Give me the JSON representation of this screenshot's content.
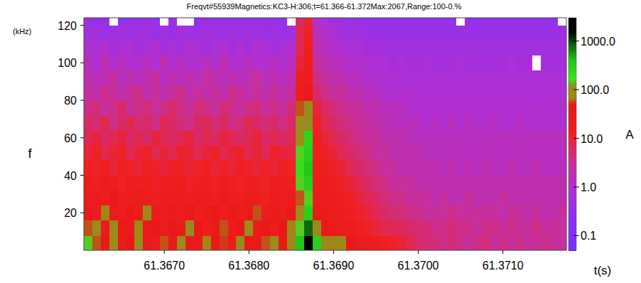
{
  "chart_data": {
    "type": "heatmap",
    "title": "Freqvt#55939Magnetics:KC3-H:306;t=61.366-61.372Max:2067,Range:100-0.%",
    "x_label": "t(s)",
    "y_label": "f",
    "y_unit": "(kHz)",
    "xlim": [
      61.36605,
      61.37175
    ],
    "ylim": [
      0,
      124
    ],
    "xticks": [
      {
        "value": 61.367,
        "label": "61.3670"
      },
      {
        "value": 61.368,
        "label": "61.3680"
      },
      {
        "value": 61.369,
        "label": "61.3690"
      },
      {
        "value": 61.37,
        "label": "61.3700"
      },
      {
        "value": 61.371,
        "label": "61.3710"
      }
    ],
    "yticks": [
      20,
      40,
      60,
      80,
      100,
      120
    ],
    "x_bins": [
      61.36605,
      61.36615,
      61.36625,
      61.36635,
      61.36645,
      61.36655,
      61.36665,
      61.36675,
      61.36685,
      61.36695,
      61.36705,
      61.36715,
      61.36725,
      61.36735,
      61.36745,
      61.36755,
      61.36765,
      61.36775,
      61.36785,
      61.36795,
      61.36805,
      61.36815,
      61.36825,
      61.36835,
      61.36845,
      61.36855,
      61.36865,
      61.36875,
      61.36885,
      61.36895,
      61.36905,
      61.36915,
      61.36925,
      61.36935,
      61.36945,
      61.36955,
      61.36965,
      61.36975,
      61.36985,
      61.36995,
      61.37005,
      61.37015,
      61.37025,
      61.37035,
      61.37045,
      61.37055,
      61.37065,
      61.37075,
      61.37085,
      61.37095,
      61.37105,
      61.37115,
      61.37125,
      61.37135,
      61.37145,
      61.37155,
      61.37165,
      61.37175
    ],
    "y_bins": [
      0,
      8,
      16,
      24,
      32,
      40,
      48,
      56,
      64,
      72,
      80,
      88,
      96,
      104,
      112,
      120,
      128
    ],
    "cells": [
      [
        150,
        60,
        40,
        80,
        30,
        50,
        90,
        40,
        25,
        60,
        35,
        80,
        45,
        30,
        70,
        40,
        55,
        30,
        90,
        45,
        35,
        60,
        80,
        40,
        90,
        400,
        2000,
        300,
        90,
        70,
        80,
        40,
        30,
        25,
        20,
        15,
        12,
        10,
        8,
        6,
        5,
        5,
        4,
        5,
        4,
        3,
        4,
        5,
        3,
        4,
        3,
        4,
        3,
        3,
        4,
        3,
        3
      ],
      [
        60,
        80,
        25,
        90,
        40,
        30,
        70,
        35,
        45,
        25,
        50,
        30,
        90,
        40,
        20,
        35,
        60,
        25,
        40,
        80,
        30,
        45,
        25,
        50,
        70,
        150,
        800,
        90,
        40,
        30,
        25,
        20,
        15,
        12,
        10,
        8,
        8,
        7,
        6,
        5,
        5,
        4,
        4,
        5,
        4,
        4,
        3,
        4,
        4,
        3,
        4,
        3,
        3,
        4,
        3,
        3,
        3
      ],
      [
        40,
        25,
        70,
        30,
        20,
        45,
        25,
        80,
        30,
        20,
        35,
        25,
        40,
        20,
        30,
        45,
        20,
        35,
        25,
        30,
        60,
        25,
        35,
        20,
        40,
        80,
        300,
        40,
        30,
        25,
        20,
        15,
        12,
        10,
        8,
        6,
        5,
        5,
        4,
        4,
        3,
        3,
        3,
        4,
        3,
        3,
        3,
        3,
        3,
        2,
        3,
        3,
        2,
        3,
        2,
        2,
        3
      ],
      [
        25,
        30,
        20,
        40,
        18,
        25,
        30,
        20,
        15,
        25,
        20,
        30,
        18,
        25,
        20,
        15,
        30,
        20,
        18,
        25,
        20,
        15,
        25,
        18,
        30,
        60,
        150,
        30,
        25,
        20,
        15,
        12,
        10,
        8,
        6,
        5,
        4,
        4,
        3,
        3,
        3,
        2,
        3,
        2,
        2,
        3,
        2,
        2,
        2,
        3,
        2,
        2,
        2,
        2,
        2,
        2,
        2
      ],
      [
        20,
        15,
        25,
        18,
        12,
        20,
        15,
        22,
        12,
        18,
        15,
        20,
        12,
        15,
        18,
        12,
        20,
        15,
        12,
        18,
        15,
        12,
        20,
        15,
        18,
        150,
        300,
        25,
        20,
        15,
        12,
        10,
        8,
        6,
        5,
        4,
        3,
        3,
        3,
        2,
        2,
        2,
        2,
        2,
        2,
        2,
        2,
        2,
        2,
        2,
        2,
        2,
        2,
        2,
        2,
        2,
        2
      ],
      [
        15,
        12,
        18,
        10,
        15,
        12,
        10,
        15,
        12,
        10,
        15,
        12,
        10,
        12,
        15,
        10,
        12,
        10,
        15,
        12,
        10,
        12,
        10,
        15,
        12,
        200,
        400,
        20,
        15,
        12,
        10,
        8,
        6,
        5,
        4,
        3,
        3,
        2,
        2,
        2,
        2,
        2,
        1.5,
        2,
        1.5,
        2,
        1.5,
        2,
        1.5,
        1.5,
        2,
        1.5,
        1.5,
        2,
        1.5,
        1.5,
        1.5
      ],
      [
        10,
        12,
        8,
        10,
        12,
        8,
        10,
        12,
        8,
        10,
        8,
        12,
        10,
        8,
        10,
        12,
        8,
        10,
        12,
        8,
        10,
        8,
        12,
        10,
        10,
        150,
        300,
        18,
        12,
        10,
        8,
        6,
        5,
        4,
        3,
        3,
        2,
        2,
        2,
        2,
        1.5,
        1.5,
        1.5,
        1.5,
        1.5,
        1.5,
        1.5,
        1.5,
        1.5,
        1.5,
        1.5,
        1.5,
        1.5,
        1.5,
        1.5,
        1.5,
        1.5
      ],
      [
        8,
        10,
        6,
        8,
        10,
        6,
        8,
        6,
        10,
        8,
        6,
        8,
        10,
        6,
        8,
        6,
        10,
        8,
        6,
        8,
        10,
        6,
        8,
        6,
        8,
        80,
        250,
        15,
        10,
        8,
        6,
        5,
        4,
        3,
        3,
        2,
        2,
        2,
        1.5,
        1.5,
        1.5,
        1.5,
        1.5,
        1.5,
        1.5,
        1.5,
        1.5,
        1.5,
        1.5,
        1.5,
        1.5,
        1.5,
        1.5,
        1.5,
        1.5,
        1.5,
        1.5
      ],
      [
        6,
        5,
        8,
        4,
        6,
        8,
        5,
        6,
        4,
        8,
        6,
        5,
        4,
        6,
        8,
        5,
        6,
        4,
        5,
        8,
        6,
        5,
        6,
        4,
        6,
        80,
        120,
        12,
        8,
        6,
        5,
        4,
        3,
        3,
        2,
        2,
        1.5,
        1.5,
        1.5,
        1.5,
        1,
        1.5,
        1,
        1.5,
        1,
        1.5,
        1,
        1,
        1.5,
        1,
        1,
        1.5,
        1,
        1,
        1,
        1,
        1
      ],
      [
        4,
        5,
        3,
        4,
        6,
        3,
        4,
        5,
        3,
        4,
        6,
        4,
        3,
        5,
        4,
        3,
        5,
        4,
        3,
        4,
        5,
        3,
        4,
        3,
        5,
        60,
        90,
        10,
        6,
        5,
        4,
        3,
        3,
        2,
        2,
        1.5,
        1.5,
        1.5,
        1,
        1,
        1,
        1,
        1,
        1,
        1,
        1,
        1,
        1,
        1,
        1,
        1,
        1,
        1,
        1,
        1,
        1,
        1
      ],
      [
        3,
        2,
        4,
        3,
        2,
        3,
        4,
        2,
        3,
        2,
        3,
        4,
        2,
        3,
        2,
        3,
        2,
        4,
        3,
        2,
        3,
        2,
        3,
        2,
        3,
        20,
        40,
        6,
        4,
        3,
        3,
        2,
        2,
        1.5,
        1.5,
        1,
        1,
        1,
        1,
        1,
        0.8,
        1,
        0.8,
        1,
        0.8,
        1,
        0.8,
        1,
        0.8,
        0.8,
        1,
        0.8,
        0.8,
        0.8,
        1,
        0.8,
        0.8
      ],
      [
        2,
        1.5,
        2,
        3,
        1.5,
        2,
        1.5,
        2,
        3,
        1.5,
        2,
        1.5,
        2,
        1.5,
        3,
        2,
        1.5,
        2,
        1.5,
        2,
        3,
        1.5,
        2,
        1.5,
        2,
        15,
        25,
        4,
        3,
        2,
        2,
        1.5,
        1.5,
        1,
        1,
        1,
        0.8,
        0.8,
        0.8,
        0.8,
        0.8,
        0.8,
        0.8,
        0.8,
        0.8,
        0.8,
        0.8,
        0.8,
        0.8,
        0.8,
        0.8,
        0.8,
        0.8,
        0.8,
        0.8,
        0.8,
        0.8
      ],
      [
        1.5,
        1,
        2,
        1,
        1.5,
        1,
        1,
        1.5,
        1,
        2,
        1,
        1.5,
        1,
        1,
        1.5,
        1,
        2,
        1,
        1,
        1.5,
        1,
        1,
        1.5,
        1,
        1.5,
        10,
        20,
        3,
        2,
        1.5,
        1.5,
        1,
        1,
        1,
        0.8,
        0.8,
        0.6,
        0.8,
        0.6,
        0.6,
        0.8,
        0.6,
        0.6,
        0.6,
        0.8,
        0.6,
        0.6,
        0.6,
        0.6,
        0.6,
        0.8,
        0.6,
        0.6,
        0.04,
        0.6,
        0.6,
        0.6
      ],
      [
        1,
        0.8,
        1,
        0.6,
        0.8,
        1,
        0.6,
        0.8,
        1,
        0.6,
        0.8,
        0.6,
        1,
        0.8,
        0.6,
        0.8,
        1,
        0.6,
        0.8,
        0.6,
        1,
        0.8,
        0.6,
        0.8,
        1,
        8,
        15,
        2,
        1.5,
        1,
        1,
        0.8,
        0.8,
        0.6,
        0.6,
        0.6,
        0.5,
        0.5,
        0.5,
        0.5,
        0.5,
        0.5,
        0.5,
        0.5,
        0.5,
        0.5,
        0.5,
        0.5,
        0.5,
        0.5,
        0.5,
        0.5,
        0.5,
        0.5,
        0.5,
        0.5,
        0.5
      ],
      [
        0.5,
        0.6,
        0.4,
        0.5,
        0.6,
        0.4,
        0.5,
        0.6,
        0.4,
        0.5,
        0.4,
        0.6,
        0.5,
        0.4,
        0.5,
        0.6,
        0.4,
        0.5,
        0.4,
        0.6,
        0.5,
        0.4,
        0.5,
        0.4,
        0.5,
        8,
        12,
        1.5,
        1,
        0.8,
        0.6,
        0.5,
        0.5,
        0.4,
        0.4,
        0.4,
        0.4,
        0.4,
        0.4,
        0.4,
        0.4,
        0.4,
        0.4,
        0.4,
        0.4,
        0.4,
        0.4,
        0.4,
        0.4,
        0.4,
        0.4,
        0.4,
        0.4,
        0.4,
        0.4,
        0.4,
        0.4
      ],
      [
        0.4,
        0.3,
        0.4,
        0.04,
        0.3,
        0.4,
        0.3,
        0.4,
        0.3,
        0.04,
        0.4,
        0.04,
        0.04,
        0.3,
        0.4,
        0.3,
        0.4,
        0.3,
        0.4,
        0.3,
        0.4,
        0.3,
        0.4,
        0.3,
        0.04,
        6,
        10,
        1,
        0.8,
        0.6,
        0.5,
        0.4,
        0.4,
        0.3,
        0.3,
        0.3,
        0.3,
        0.3,
        0.3,
        0.3,
        0.3,
        0.3,
        0.3,
        0.3,
        0.04,
        0.3,
        0.3,
        0.3,
        0.3,
        0.3,
        0.3,
        0.3,
        0.3,
        0.3,
        0.3,
        0.3,
        0.04
      ]
    ],
    "color_label": "A",
    "color_range": [
      0.05,
      3000
    ],
    "color_ticks": [
      0.1,
      {
        "value": 1,
        "label": "1.0"
      },
      {
        "value": 10,
        "label": "10.0"
      },
      {
        "value": 100,
        "label": "100.0"
      },
      {
        "value": 1000,
        "label": "1000.0"
      }
    ]
  }
}
